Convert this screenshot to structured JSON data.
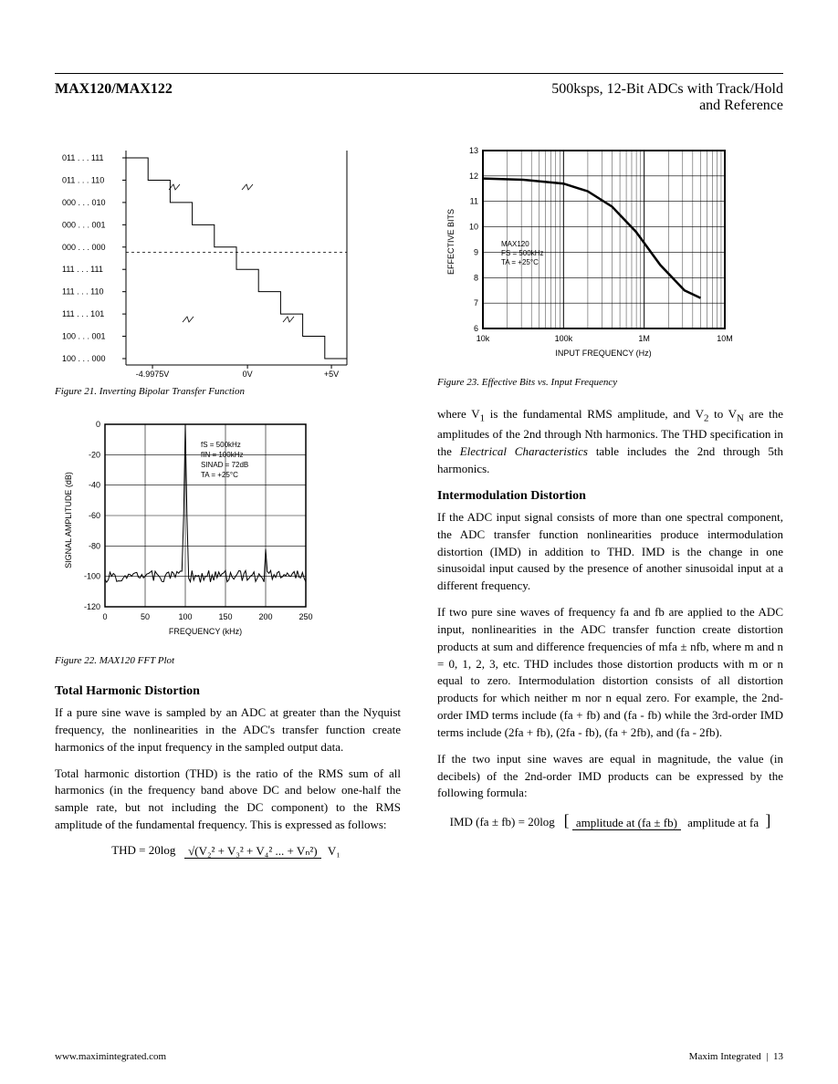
{
  "header": {
    "part_number": "MAX120/MAX122",
    "title_line1": "500ksps, 12-Bit ADCs with Track/Hold",
    "title_line2": "and Reference"
  },
  "figure21": {
    "caption": "Figure 21. Inverting Bipolar Transfer Function",
    "y_labels": [
      "011 . . . 111",
      "011 . . . 110",
      "000 . . . 010",
      "000 . . . 001",
      "000 . . . 000",
      "111 . . . 111",
      "111 . . . 110",
      "111 . . . 101",
      "100 . . . 001",
      "100 . . . 000"
    ],
    "x_labels": [
      "-4.9975V",
      "0V",
      "+5V"
    ],
    "x_positions": [
      0.12,
      0.55,
      0.93
    ],
    "break_symbol_count": 4,
    "dashed_line_y": 0.47,
    "line_color": "#000000",
    "grid_color": "#000000"
  },
  "figure22": {
    "caption": "Figure 22. MAX120 FFT Plot",
    "y_label": "SIGNAL AMPLITUDE (dB)",
    "x_label": "FREQUENCY (kHz)",
    "y_ticks": [
      0,
      -20,
      -40,
      -60,
      -80,
      -100,
      -120
    ],
    "x_ticks": [
      0,
      50,
      100,
      150,
      200,
      250
    ],
    "annotations": [
      "fS = 500kHz",
      "fIN = 100kHz",
      "SINAD = 72dB",
      "TA = +25°C"
    ],
    "noise_floor_db": -100,
    "fundamental_freq_khz": 100,
    "spur_freq_khz": 200,
    "spur_level_db": -82,
    "line_color": "#000000",
    "axis_color": "#000000",
    "grid_weight": 1
  },
  "figure23": {
    "caption": "Figure 23. Effective Bits vs. Input Frequency",
    "y_label": "EFFECTIVE BITS",
    "x_label": "INPUT FREQUENCY (Hz)",
    "y_ticks": [
      6,
      7,
      8,
      9,
      10,
      11,
      12,
      13
    ],
    "x_ticks": [
      "10k",
      "100k",
      "1M",
      "10M"
    ],
    "x_scale": "log",
    "annotations": [
      "MAX120",
      "FS = 500kHz",
      "TA = +25°C"
    ],
    "curve_points_xlog_y": [
      [
        4.0,
        11.9
      ],
      [
        4.5,
        11.85
      ],
      [
        5.0,
        11.7
      ],
      [
        5.3,
        11.4
      ],
      [
        5.6,
        10.8
      ],
      [
        5.9,
        9.8
      ],
      [
        6.2,
        8.5
      ],
      [
        6.5,
        7.5
      ],
      [
        6.7,
        7.2
      ]
    ],
    "curve_stroke_width": 2.5,
    "line_color": "#000000",
    "axis_color": "#000000"
  },
  "left_text": {
    "thd_title": "Total Harmonic Distortion",
    "thd_p1": "If a pure sine wave is sampled by an ADC at greater than the Nyquist frequency, the nonlinearities in the ADC's transfer function create harmonics of the input frequency in the sampled output data.",
    "thd_p2": "Total harmonic distortion (THD) is the ratio of the RMS sum of all harmonics (in the frequency band above DC and below one-half the sample rate, but not including the DC component) to the RMS amplitude of the fundamental frequency. This is expressed as follows:",
    "thd_formula_lhs": "THD = 20log",
    "thd_formula_num": "√(V₂² + V₃² + V₄² ... + Vₙ²)",
    "thd_formula_den": "V₁"
  },
  "right_text": {
    "continuation": "where V₁ is the fundamental RMS amplitude, and V₂ to Vₙ are the amplitudes of the 2nd through Nth harmonics. The THD specification in the Electrical Characteristics table includes the 2nd through 5th harmonics.",
    "imd_title": "Intermodulation Distortion",
    "imd_p1": "If the ADC input signal consists of more than one spectral component, the ADC transfer function nonlinearities produce intermodulation distortion (IMD) in addition to THD. IMD is the change in one sinusoidal input caused by the presence of another sinusoidal input at a different frequency.",
    "imd_p2": "If two pure sine waves of frequency fa and fb are applied to the ADC input, nonlinearities in the ADC transfer function create distortion products at sum and difference frequencies of mfa ± nfb, where m and n = 0, 1, 2, 3, etc. THD includes those distortion products with m or n equal to zero. Intermodulation distortion consists of all distortion products for which neither m nor n equal zero. For example, the 2nd-order IMD terms include (fa + fb) and (fa - fb) while the 3rd-order IMD terms include (2fa + fb), (2fa - fb), (fa + 2fb), and (fa - 2fb).",
    "imd_p3": "If the two input sine waves are equal in magnitude, the value (in decibels) of the 2nd-order IMD products can be expressed by the following formula:",
    "imd_formula_lhs": "IMD (fa ± fb) = 20log",
    "imd_formula_num": "amplitude at (fa ± fb)",
    "imd_formula_den": "amplitude at fa"
  },
  "footer": {
    "url": "www.maximintegrated.com",
    "company": "Maxim Integrated",
    "page": "13"
  }
}
